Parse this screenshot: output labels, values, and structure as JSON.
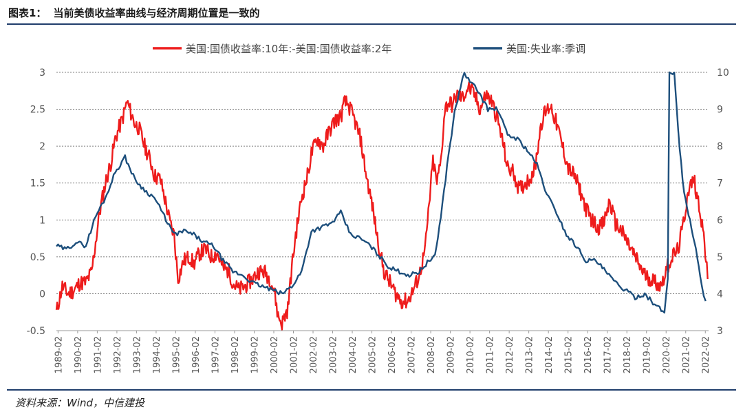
{
  "header": {
    "figure_label": "图表1：",
    "title": "当前美债收益率曲线与经济周期位置是一致的"
  },
  "footer": {
    "source": "资料来源：Wind，中信建投"
  },
  "chart_data": {
    "type": "line",
    "legend_position": "top",
    "grid": "horizontal-dashed",
    "x_ticks": [
      "1989-02",
      "1990-02",
      "1991-02",
      "1992-02",
      "1993-02",
      "1994-02",
      "1995-02",
      "1996-02",
      "1997-02",
      "1998-02",
      "1999-02",
      "2000-02",
      "2001-02",
      "2002-02",
      "2003-02",
      "2004-02",
      "2005-02",
      "2006-02",
      "2007-02",
      "2008-02",
      "2009-02",
      "2010-02",
      "2011-02",
      "2012-02",
      "2013-02",
      "2014-02",
      "2015-02",
      "2016-02",
      "2017-02",
      "2018-02",
      "2019-02",
      "2020-02",
      "2021-02",
      "2022-02"
    ],
    "x_range": [
      1989.0,
      2022.25
    ],
    "y_left": {
      "min": -0.5,
      "max": 3,
      "ticks": [
        "-0.5",
        "0",
        "0.5",
        "1",
        "1.5",
        "2",
        "2.5",
        "3"
      ]
    },
    "y_right": {
      "min": 3,
      "max": 10,
      "ticks": [
        "3",
        "4",
        "5",
        "6",
        "7",
        "8",
        "9",
        "10"
      ]
    },
    "series": [
      {
        "name": "美国:国债收益率:10年:-美国:国债收益率:2年",
        "axis": "left",
        "color": "#ee1c1c",
        "x": [
          1989.0,
          1989.3,
          1989.6,
          1989.9,
          1990.2,
          1990.5,
          1990.8,
          1991.0,
          1991.2,
          1991.5,
          1991.8,
          1992.0,
          1992.2,
          1992.4,
          1992.6,
          1992.8,
          1993.0,
          1993.2,
          1993.5,
          1993.8,
          1994.0,
          1994.3,
          1994.6,
          1994.8,
          1995.0,
          1995.2,
          1995.5,
          1995.8,
          1996.0,
          1996.3,
          1996.6,
          1996.9,
          1997.2,
          1997.5,
          1997.8,
          1998.0,
          1998.3,
          1998.6,
          1998.8,
          1999.0,
          1999.3,
          1999.6,
          1999.9,
          2000.1,
          2000.3,
          2000.5,
          2000.8,
          2001.0,
          2001.2,
          2001.5,
          2001.8,
          2002.0,
          2002.3,
          2002.6,
          2002.9,
          2003.2,
          2003.5,
          2003.7,
          2003.9,
          2004.2,
          2004.5,
          2004.8,
          2005.1,
          2005.4,
          2005.7,
          2006.0,
          2006.3,
          2006.6,
          2006.9,
          2007.2,
          2007.5,
          2007.8,
          2008.0,
          2008.2,
          2008.4,
          2008.6,
          2008.8,
          2009.0,
          2009.2,
          2009.4,
          2009.7,
          2010.0,
          2010.3,
          2010.6,
          2010.9,
          2011.2,
          2011.5,
          2011.8,
          2012.0,
          2012.3,
          2012.6,
          2012.9,
          2013.1,
          2013.4,
          2013.7,
          2013.9,
          2014.2,
          2014.5,
          2014.8,
          2015.1,
          2015.4,
          2015.7,
          2016.0,
          2016.3,
          2016.6,
          2016.9,
          2017.2,
          2017.5,
          2017.8,
          2018.1,
          2018.4,
          2018.7,
          2019.0,
          2019.3,
          2019.6,
          2019.8,
          2020.0,
          2020.2,
          2020.4,
          2020.7,
          2021.0,
          2021.2,
          2021.5,
          2021.8,
          2022.0,
          2022.2
        ],
        "y": [
          -0.25,
          0.1,
          0.0,
          0.05,
          0.15,
          0.15,
          0.3,
          0.7,
          1.1,
          1.5,
          1.8,
          2.1,
          2.25,
          2.4,
          2.6,
          2.45,
          2.3,
          2.25,
          2.0,
          1.8,
          1.6,
          1.55,
          1.2,
          0.95,
          0.8,
          0.2,
          0.45,
          0.5,
          0.4,
          0.55,
          0.6,
          0.5,
          0.55,
          0.35,
          0.3,
          0.15,
          0.05,
          0.1,
          0.15,
          0.2,
          0.3,
          0.3,
          0.2,
          0.05,
          -0.3,
          -0.4,
          -0.2,
          0.35,
          0.8,
          1.3,
          1.6,
          1.9,
          2.1,
          2.0,
          2.2,
          2.35,
          2.4,
          2.6,
          2.55,
          2.35,
          2.1,
          1.6,
          1.2,
          0.7,
          0.3,
          0.15,
          0.0,
          -0.1,
          -0.1,
          0.05,
          0.25,
          0.6,
          1.2,
          1.8,
          1.5,
          1.8,
          2.5,
          2.6,
          2.55,
          2.7,
          2.65,
          2.8,
          2.7,
          2.5,
          2.7,
          2.6,
          2.35,
          2.0,
          1.7,
          1.65,
          1.4,
          1.5,
          1.55,
          1.7,
          2.3,
          2.45,
          2.55,
          2.3,
          2.0,
          1.7,
          1.6,
          1.4,
          1.15,
          1.0,
          0.9,
          0.95,
          1.25,
          0.95,
          0.85,
          0.7,
          0.55,
          0.4,
          0.25,
          0.2,
          0.15,
          0.1,
          0.25,
          0.4,
          0.5,
          0.6,
          1.0,
          1.4,
          1.55,
          1.15,
          0.8,
          0.2
        ]
      },
      {
        "name": "美国:失业率:季调",
        "axis": "right",
        "color": "#1d4f7c",
        "x": [
          1989.0,
          1989.5,
          1990.0,
          1990.5,
          1991.0,
          1991.5,
          1992.0,
          1992.5,
          1993.0,
          1993.5,
          1994.0,
          1994.5,
          1995.0,
          1995.5,
          1996.0,
          1996.5,
          1997.0,
          1997.5,
          1998.0,
          1998.5,
          1999.0,
          1999.5,
          2000.0,
          2000.5,
          2001.0,
          2001.5,
          2002.0,
          2002.5,
          2003.0,
          2003.5,
          2004.0,
          2004.5,
          2005.0,
          2005.5,
          2006.0,
          2006.5,
          2007.0,
          2007.5,
          2008.0,
          2008.3,
          2008.6,
          2009.0,
          2009.3,
          2009.6,
          2009.8,
          2010.0,
          2010.5,
          2011.0,
          2011.5,
          2012.0,
          2012.5,
          2013.0,
          2013.5,
          2014.0,
          2014.5,
          2015.0,
          2015.5,
          2016.0,
          2016.5,
          2017.0,
          2017.5,
          2018.0,
          2018.5,
          2019.0,
          2019.5,
          2020.0,
          2020.17,
          2020.25,
          2020.33,
          2020.5,
          2020.7,
          2021.0,
          2021.3,
          2021.6,
          2021.9,
          2022.1
        ],
        "y": [
          5.3,
          5.2,
          5.4,
          5.3,
          6.1,
          6.6,
          7.3,
          7.7,
          7.1,
          6.8,
          6.6,
          6.1,
          5.6,
          5.7,
          5.6,
          5.4,
          5.3,
          4.9,
          4.6,
          4.5,
          4.3,
          4.2,
          4.1,
          4.0,
          4.2,
          4.6,
          5.7,
          5.8,
          5.9,
          6.2,
          5.6,
          5.5,
          5.3,
          5.0,
          4.7,
          4.6,
          4.5,
          4.6,
          4.9,
          5.0,
          6.1,
          7.8,
          8.9,
          9.6,
          10.0,
          9.8,
          9.5,
          9.0,
          9.0,
          8.3,
          8.2,
          7.9,
          7.5,
          6.7,
          6.2,
          5.6,
          5.3,
          4.9,
          4.9,
          4.6,
          4.3,
          4.1,
          3.9,
          4.0,
          3.7,
          3.5,
          4.4,
          10.0,
          10.0,
          10.0,
          8.4,
          6.7,
          6.0,
          5.2,
          4.2,
          3.8
        ]
      }
    ]
  }
}
